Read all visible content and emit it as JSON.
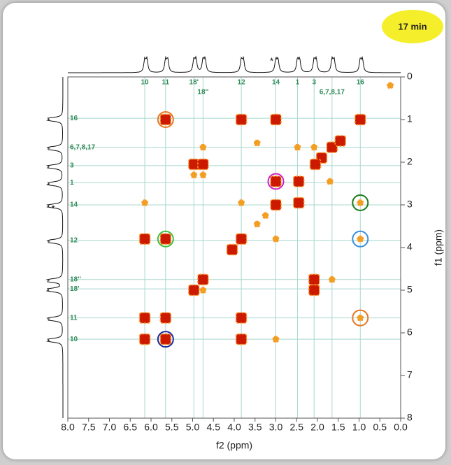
{
  "chart_data": {
    "type": "nmr2d",
    "badge": "17 min",
    "x_label": "f2 (ppm)",
    "y_label": "f1 (ppm)",
    "asterisk": "*",
    "xlim": [
      8.0,
      0.0
    ],
    "ylim": [
      0,
      8
    ],
    "xticks": [
      {
        "value": 8.0,
        "label": "8.0"
      },
      {
        "value": 7.5,
        "label": "7.5"
      },
      {
        "value": 7.0,
        "label": "7.0"
      },
      {
        "value": 6.5,
        "label": "6.5"
      },
      {
        "value": 6.0,
        "label": "6.0"
      },
      {
        "value": 5.5,
        "label": "5.5"
      },
      {
        "value": 5.0,
        "label": "5.0"
      },
      {
        "value": 4.5,
        "label": "4.5"
      },
      {
        "value": 4.0,
        "label": "4.0"
      },
      {
        "value": 3.5,
        "label": "3.5"
      },
      {
        "value": 3.0,
        "label": "3.0"
      },
      {
        "value": 2.5,
        "label": "2.5"
      },
      {
        "value": 2.0,
        "label": "2.0"
      },
      {
        "value": 1.5,
        "label": "1.5"
      },
      {
        "value": 1.0,
        "label": "1.0"
      },
      {
        "value": 0.5,
        "label": "0.5"
      },
      {
        "value": 0.0,
        "label": "0.0"
      }
    ],
    "yticks": [
      0,
      1,
      2,
      3,
      4,
      5,
      6,
      7,
      8
    ],
    "assignments": [
      {
        "label": "10",
        "ppm": 6.15
      },
      {
        "label": "11",
        "ppm": 5.65
      },
      {
        "label": "18'",
        "ppm": 4.97
      },
      {
        "label": "18''",
        "ppm": 4.75
      },
      {
        "label": "12",
        "ppm": 3.83
      },
      {
        "label": "14",
        "ppm": 3.0
      },
      {
        "label": "1",
        "ppm": 2.48
      },
      {
        "label": "3",
        "ppm": 2.08
      },
      {
        "label": "6,7,8,17",
        "ppm": 1.65
      },
      {
        "label": "16",
        "ppm": 0.97
      }
    ],
    "strong_peaks": {
      "color": "#cc1a00",
      "x": [
        0.97,
        1.65,
        1.9,
        1.45,
        2.05,
        2.45,
        3.0,
        3.83,
        4.05,
        4.75,
        4.97,
        5.65,
        6.15,
        5.65,
        3.83,
        3.0,
        4.97,
        4.75,
        3.0,
        2.45,
        6.15,
        5.65,
        2.08,
        2.08,
        6.15,
        3.83,
        5.65,
        3.83
      ],
      "y": [
        1.0,
        1.65,
        1.9,
        1.5,
        2.05,
        2.45,
        3.0,
        3.8,
        4.05,
        4.75,
        5.0,
        5.65,
        6.15,
        1.0,
        1.0,
        1.0,
        2.05,
        2.05,
        2.45,
        2.95,
        3.8,
        3.8,
        4.75,
        5.0,
        5.65,
        5.65,
        6.15,
        6.15
      ]
    },
    "weak_peaks": {
      "color": "#f0a020",
      "x": [
        6.15,
        3.83,
        0.97,
        3.0,
        0.97,
        4.97,
        4.75,
        4.75,
        3.45,
        1.65,
        4.75,
        0.97,
        3.0,
        2.48,
        2.08,
        3.45,
        0.25,
        1.7,
        3.25
      ],
      "y": [
        2.95,
        2.95,
        2.95,
        3.8,
        3.8,
        2.3,
        2.3,
        1.65,
        3.45,
        4.75,
        5.0,
        5.65,
        6.15,
        1.65,
        1.65,
        1.55,
        0.2,
        2.45,
        3.25
      ]
    },
    "highlights": {
      "x": [
        5.65,
        3.0,
        0.97,
        5.65,
        0.97,
        0.97,
        5.65
      ],
      "y": [
        1.0,
        2.45,
        2.95,
        3.8,
        3.8,
        5.65,
        6.15
      ],
      "colors": [
        "#e87722",
        "#d020c0",
        "#1a7a1a",
        "#40c040",
        "#3a8fd8",
        "#e87722",
        "#1a2aa0"
      ]
    }
  }
}
